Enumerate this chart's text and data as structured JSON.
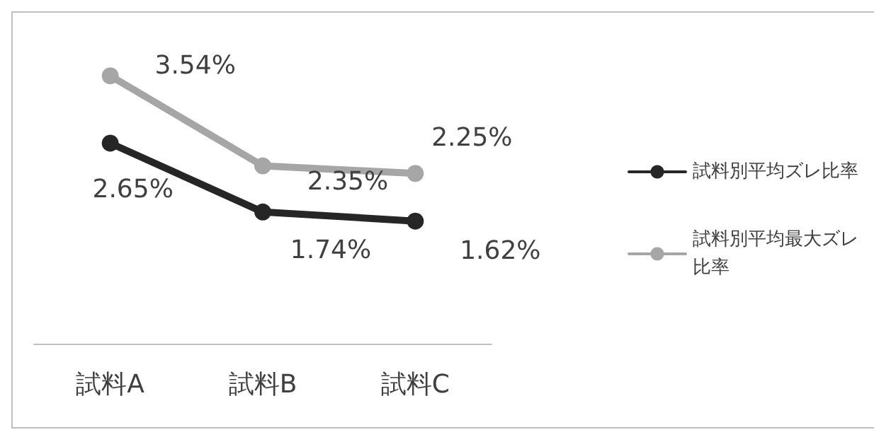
{
  "chart_data": {
    "type": "line",
    "categories": [
      "試料A",
      "試料B",
      "試料C"
    ],
    "legend": "right",
    "marker": "circle",
    "line_style": "solid",
    "grid": false,
    "tick_labels": "x",
    "series": [
      {
        "name": "試料別平均ズレ比率",
        "color": "#262626",
        "values": [
          2.65,
          1.74,
          1.62
        ],
        "value_labels": [
          "2.65%",
          "1.74%",
          "1.62%"
        ]
      },
      {
        "name": "試料別平均最大ズレ比率",
        "color": "#a6a6a6",
        "values": [
          3.54,
          2.35,
          2.25
        ],
        "value_labels": [
          "3.54%",
          "2.35%",
          "2.25%"
        ]
      }
    ]
  }
}
